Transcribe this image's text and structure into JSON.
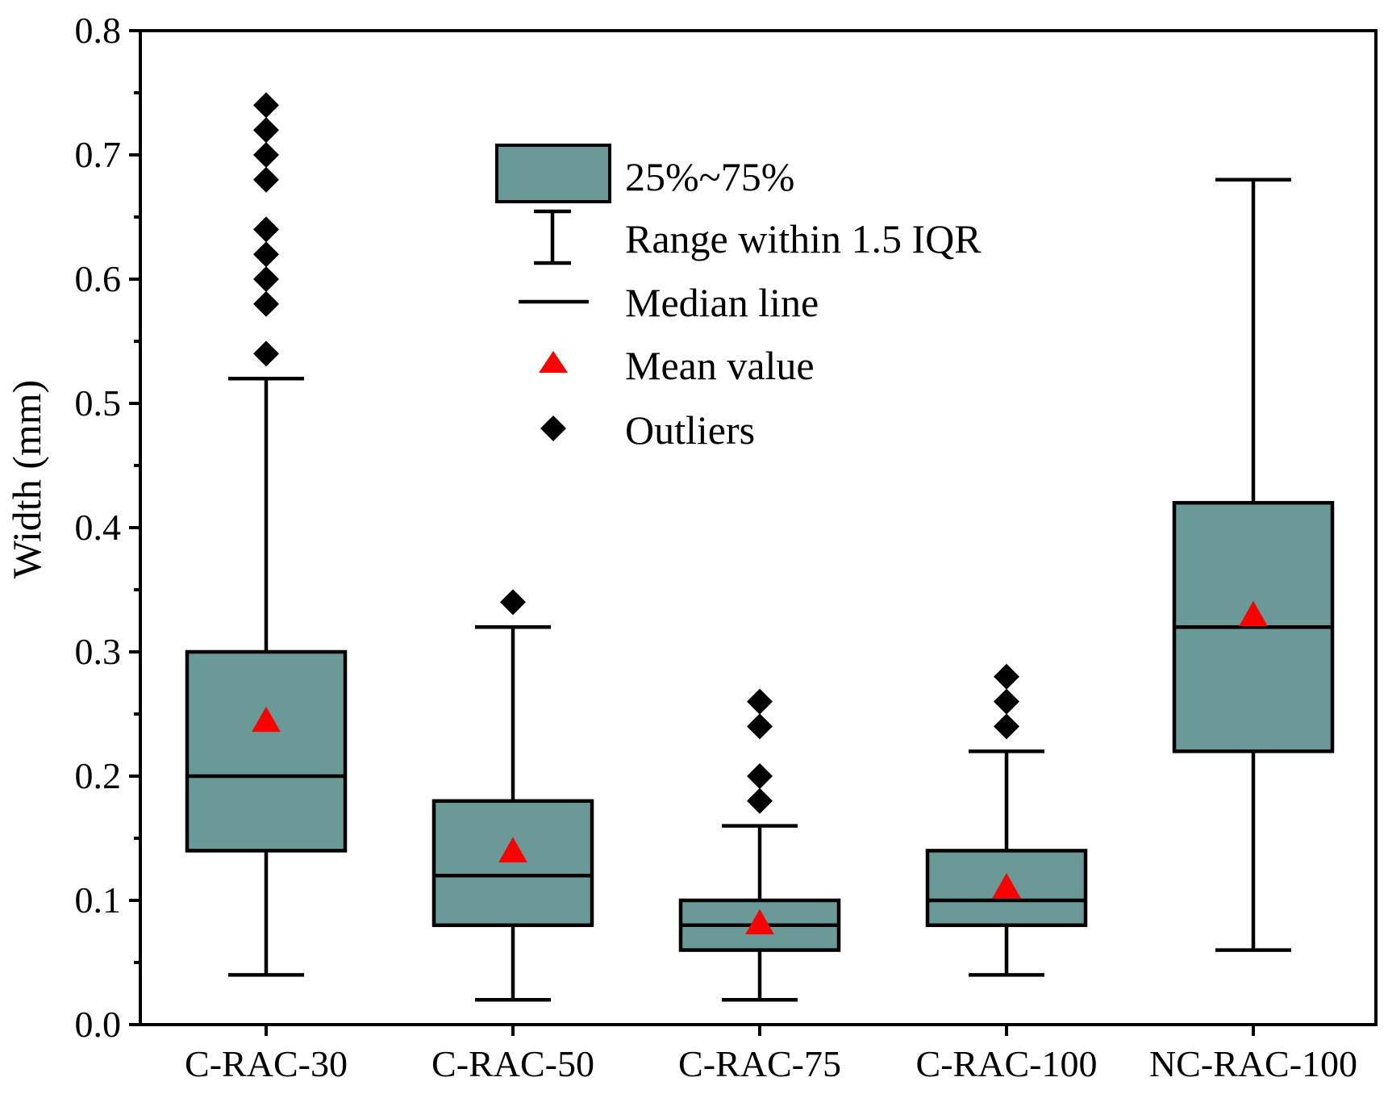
{
  "chart_data": {
    "type": "box",
    "title": "",
    "xlabel": "",
    "ylabel": "Width (mm)",
    "ylim": [
      0.0,
      0.8
    ],
    "yticks": [
      "0.0",
      "0.1",
      "0.2",
      "0.3",
      "0.4",
      "0.5",
      "0.6",
      "0.7",
      "0.8"
    ],
    "grid": false,
    "legend_placement": "top-center",
    "legend": {
      "box": "25%~75%",
      "whisker": "Range within 1.5 IQR",
      "median": "Median line",
      "mean": "Mean value",
      "outliers": "Outliers"
    },
    "colors": {
      "box_fill": "#6a9a98",
      "mean_marker": "#ff0000",
      "outlier_marker": "#000000",
      "line": "#000000"
    },
    "categories": [
      "C-RAC-30",
      "C-RAC-50",
      "C-RAC-75",
      "C-RAC-100",
      "NC-RAC-100"
    ],
    "series": [
      {
        "category": "C-RAC-30",
        "whisker_low": 0.04,
        "q1": 0.14,
        "median": 0.2,
        "q3": 0.3,
        "whisker_high": 0.52,
        "mean": 0.245,
        "outliers": [
          0.54,
          0.58,
          0.6,
          0.62,
          0.64,
          0.68,
          0.7,
          0.72,
          0.74
        ]
      },
      {
        "category": "C-RAC-50",
        "whisker_low": 0.02,
        "q1": 0.08,
        "median": 0.12,
        "q3": 0.18,
        "whisker_high": 0.32,
        "mean": 0.14,
        "outliers": [
          0.34
        ]
      },
      {
        "category": "C-RAC-75",
        "whisker_low": 0.02,
        "q1": 0.06,
        "median": 0.08,
        "q3": 0.1,
        "whisker_high": 0.16,
        "mean": 0.082,
        "outliers": [
          0.18,
          0.2,
          0.24,
          0.26
        ]
      },
      {
        "category": "C-RAC-100",
        "whisker_low": 0.04,
        "q1": 0.08,
        "median": 0.1,
        "q3": 0.14,
        "whisker_high": 0.22,
        "mean": 0.111,
        "outliers": [
          0.24,
          0.26,
          0.28
        ]
      },
      {
        "category": "NC-RAC-100",
        "whisker_low": 0.06,
        "q1": 0.22,
        "median": 0.32,
        "q3": 0.42,
        "whisker_high": 0.68,
        "mean": 0.33,
        "outliers": []
      }
    ]
  }
}
